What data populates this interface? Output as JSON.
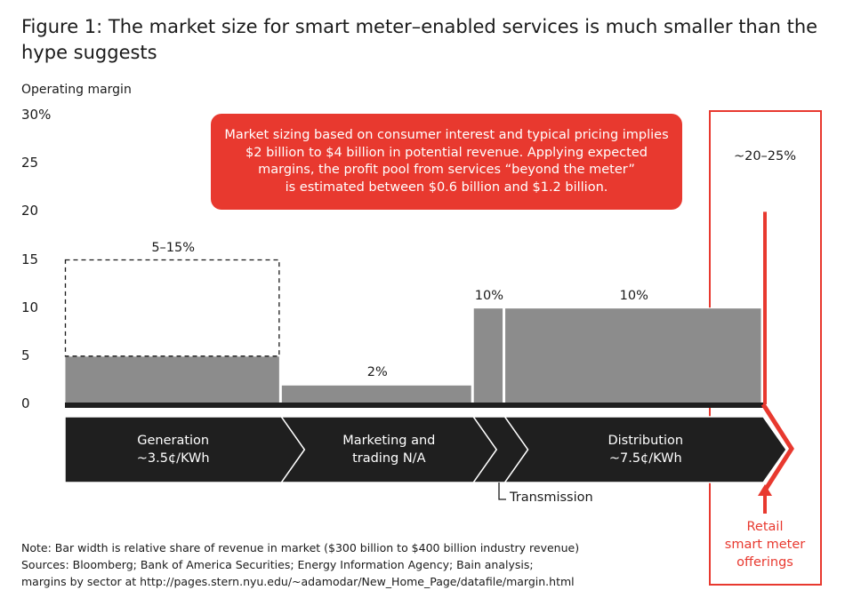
{
  "title": "Figure 1: The market size for smart meter–enabled services is much smaller than the hype suggests",
  "callout": "Market sizing based on consumer interest and typical pricing implies\n$2 billion to $4 billion in potential revenue. Applying expected\nmargins, the profit pool from services “beyond the meter”\nis estimated between $0.6 billion and $1.2 billion.",
  "retail_label": "Retail\nsmart meter\nofferings",
  "transmission_label": "Transmission",
  "footnotes": {
    "note": "Note: Bar width is relative share of revenue in market ($300 billion to $400 billion industry revenue)",
    "sources": "Sources: Bloomberg; Bank of America Securities; Energy Information Agency; Bain analysis;",
    "margins": "margins by sector at http://pages.stern.nyu.edu/~adamodar/New_Home_Page/datafile/margin.html"
  },
  "colors": {
    "bar": "#8c8c8c",
    "accent": "#e8392f",
    "chain": "#1f1f1f"
  },
  "chart_data": {
    "type": "bar",
    "title": "Figure 1: The market size for smart meter–enabled services is much smaller than the hype suggests",
    "ylabel": "Operating margin",
    "ylim": [
      0,
      30
    ],
    "yticks": [
      "0",
      "5",
      "10",
      "15",
      "20",
      "25",
      "30%"
    ],
    "ytick_values": [
      0,
      5,
      10,
      15,
      20,
      25,
      30
    ],
    "series": [
      {
        "name": "Generation",
        "value": 5,
        "range_high": 15,
        "label": "5–15%",
        "width_share": 0.31,
        "segment": "Generation\n~3.5¢/KWh"
      },
      {
        "name": "Marketing and trading",
        "value": 2,
        "label": "2%",
        "width_share": 0.275,
        "segment": "Marketing and\ntrading N/A"
      },
      {
        "name": "Transmission",
        "value": 10,
        "label": "10%",
        "width_share": 0.045,
        "segment": ""
      },
      {
        "name": "Distribution",
        "value": 10,
        "label": "10%",
        "width_share": 0.37,
        "segment": "Distribution\n~7.5¢/KWh"
      }
    ],
    "retail": {
      "name": "Retail smart meter offerings",
      "low": 20,
      "high": 25,
      "label": "~20–25%"
    }
  }
}
